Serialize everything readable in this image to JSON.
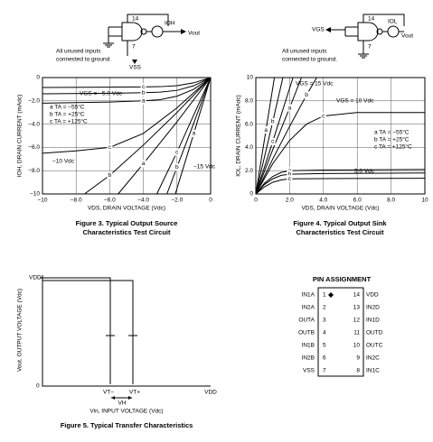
{
  "figure3": {
    "circuit": {
      "labels": [
        "14",
        "IOH",
        "Vout",
        "7",
        "VSS"
      ],
      "note": [
        "All unused inputs",
        "connected to ground."
      ]
    },
    "caption": [
      "Figure 3. Typical Output Source",
      "Characteristics Test Circuit"
    ]
  },
  "figure4": {
    "circuit": {
      "labels": [
        "VGS",
        "14",
        "IOL",
        "Vout",
        "7"
      ],
      "note": [
        "All unused inputs",
        "connected to ground."
      ]
    },
    "caption": [
      "Figure 4. Typical Output Sink",
      "Characteristics Test Circuit"
    ]
  },
  "chart_data": [
    {
      "type": "line",
      "ylabel": "IOH, DRAIN CURRENT (mAdc)",
      "xlabel": "VDS, DRAIN VOLTAGE (Vdc)",
      "xlim": [
        -10,
        0
      ],
      "ylim": [
        -10,
        0
      ],
      "xticks": [
        {
          "value": -10,
          "label": "−10"
        },
        {
          "value": -8,
          "label": "−8.0"
        },
        {
          "value": -6,
          "label": "−6.0"
        },
        {
          "value": -4,
          "label": "−4.0"
        },
        {
          "value": -2,
          "label": "−2.0"
        },
        0
      ],
      "yticks": [
        {
          "value": -10,
          "label": "−10"
        },
        {
          "value": -8,
          "label": "−8.0"
        },
        {
          "value": -6,
          "label": "−6.0"
        },
        {
          "value": -4,
          "label": "−4.0"
        },
        {
          "value": -2,
          "label": "−2.0"
        },
        0
      ],
      "grid": true,
      "color": "#000000",
      "series": [
        {
          "label": "a",
          "x": [
            0,
            -1,
            -2,
            -3,
            -4,
            -6,
            -10
          ],
          "values": [
            0,
            -1.0,
            -1.6,
            -1.9,
            -2.0,
            -2.1,
            -2.2
          ]
        },
        {
          "label": "b",
          "x": [
            0,
            -1,
            -2,
            -3,
            -4,
            -6,
            -10
          ],
          "values": [
            0,
            -0.7,
            -1.1,
            -1.25,
            -1.3,
            -1.35,
            -1.4
          ]
        },
        {
          "label": "c",
          "x": [
            0,
            -1,
            -2,
            -3,
            -4,
            -6,
            -10
          ],
          "values": [
            0,
            -0.45,
            -0.7,
            -0.78,
            -0.8,
            -0.82,
            -0.85
          ]
        },
        {
          "label": "a",
          "x": [
            0,
            -2,
            -4,
            -5.5
          ],
          "values": [
            0,
            -3.8,
            -7.4,
            -10
          ]
        },
        {
          "label": "b",
          "x": [
            0,
            -2,
            -4,
            -6,
            -7.5
          ],
          "values": [
            0,
            -3.0,
            -5.8,
            -8.4,
            -10
          ]
        },
        {
          "label": "c",
          "x": [
            0,
            -2,
            -4,
            -6,
            -8,
            -10
          ],
          "values": [
            0,
            -2.6,
            -4.8,
            -6.0,
            -6.3,
            -6.5
          ]
        },
        {
          "label": "a",
          "x": [
            0,
            -1,
            -2.1
          ],
          "values": [
            0,
            -4.8,
            -10
          ]
        },
        {
          "label": "b",
          "x": [
            0,
            -1,
            -2,
            -2.6
          ],
          "values": [
            0,
            -3.9,
            -7.7,
            -10
          ]
        },
        {
          "label": "c",
          "x": [
            0,
            -1,
            -2,
            -3.2
          ],
          "values": [
            0,
            -3.2,
            -6.4,
            -10
          ]
        }
      ],
      "annotations": [
        "VGS = −5.0 Vdc",
        "−10 Vdc",
        "−15 Vdc",
        "a  TA = −55°C",
        "b  TA = +25°C",
        "c  TA = +125°C"
      ]
    },
    {
      "type": "line",
      "ylabel": "IOL, DRAIN CURRENT (mAdc)",
      "xlabel": "VDS, DRAIN VOLTAGE (Vdc)",
      "xlim": [
        0,
        10
      ],
      "ylim": [
        0,
        10
      ],
      "xticks": [
        0,
        {
          "value": 2,
          "label": "2.0"
        },
        {
          "value": 4,
          "label": "4.0"
        },
        {
          "value": 6,
          "label": "6.0"
        },
        {
          "value": 8,
          "label": "8.0"
        },
        10
      ],
      "yticks": [
        0,
        {
          "value": 2,
          "label": "2.0"
        },
        {
          "value": 4,
          "label": "4.0"
        },
        {
          "value": 6,
          "label": "6.0"
        },
        {
          "value": 8,
          "label": "8.0"
        },
        10
      ],
      "grid": true,
      "color": "#000000",
      "series": [
        {
          "label": "a",
          "x": [
            0,
            0.5,
            1,
            1.5,
            2,
            4,
            10
          ],
          "values": [
            0,
            0.9,
            1.5,
            1.85,
            2.0,
            2.05,
            2.1
          ]
        },
        {
          "label": "b",
          "x": [
            0,
            0.5,
            1,
            1.5,
            2,
            4,
            10
          ],
          "values": [
            0,
            0.8,
            1.3,
            1.6,
            1.7,
            1.75,
            1.8
          ]
        },
        {
          "label": "c",
          "x": [
            0,
            0.5,
            1,
            1.5,
            2,
            4,
            10
          ],
          "values": [
            0,
            0.6,
            1.0,
            1.2,
            1.3,
            1.32,
            1.35
          ]
        },
        {
          "label": "a",
          "x": [
            0,
            1,
            2,
            2.7
          ],
          "values": [
            0,
            3.8,
            7.4,
            10
          ]
        },
        {
          "label": "b",
          "x": [
            0,
            1,
            2,
            3,
            3.6
          ],
          "values": [
            0,
            3.0,
            5.8,
            8.5,
            10
          ]
        },
        {
          "label": "c",
          "x": [
            0,
            1,
            2,
            3,
            4,
            6,
            10
          ],
          "values": [
            0,
            2.6,
            4.6,
            6.0,
            6.7,
            7.0,
            7.0
          ]
        },
        {
          "label": "a",
          "x": [
            0,
            0.6,
            1.1
          ],
          "values": [
            0,
            5.5,
            10
          ]
        },
        {
          "label": "b",
          "x": [
            0,
            1,
            1.6
          ],
          "values": [
            0,
            6.2,
            10
          ]
        },
        {
          "label": "c",
          "x": [
            0,
            1,
            2.2
          ],
          "values": [
            0,
            4.5,
            10
          ]
        }
      ],
      "annotations": [
        "VGS = 15 Vdc",
        "VGS = 10 Vdc",
        "5.0 Vdc",
        "a  TA = −55°C",
        "b  TA = +25°C",
        "c  TA = +125°C"
      ]
    }
  ],
  "figure5": {
    "labels": [
      "VDD",
      "0",
      "Vout, OUTPUT VOLTAGE (Vdc)",
      "VT−",
      "VT+",
      "VDD",
      "VH",
      "Vin, INPUT VOLTAGE (Vdc)"
    ],
    "caption": "Figure 5. Typical Transfer Characteristics"
  },
  "pin_assignment": {
    "title": "PIN ASSIGNMENT",
    "rows": [
      [
        "IN1A",
        1,
        14,
        "VDD"
      ],
      [
        "IN2A",
        2,
        13,
        "IN2D"
      ],
      [
        "OUTA",
        3,
        12,
        "IN1D"
      ],
      [
        "OUTB",
        4,
        11,
        "OUTD"
      ],
      [
        "IN1B",
        5,
        10,
        "OUTC"
      ],
      [
        "IN2B",
        6,
        9,
        "IN2C"
      ],
      [
        "VSS",
        7,
        8,
        "IN1C"
      ]
    ]
  }
}
